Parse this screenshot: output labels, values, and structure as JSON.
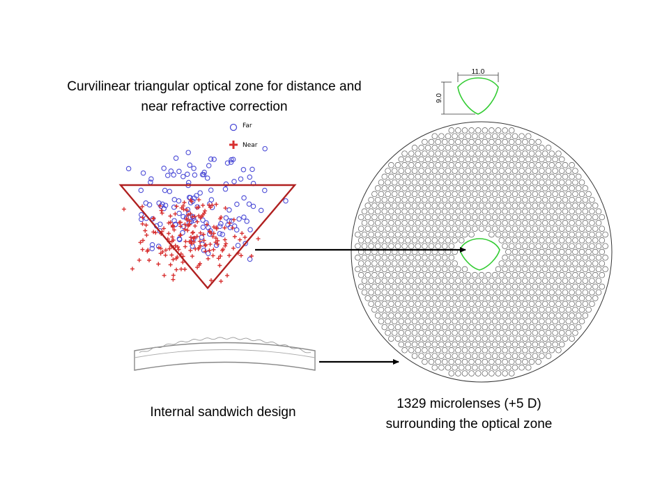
{
  "captions": {
    "top_line1": "Curvilinear triangular optical zone for distance and",
    "top_line2": "near refractive correction",
    "sandwich": "Internal sandwich design",
    "micro_line1": "1329 microlenses (+5 D)",
    "micro_line2": "surrounding the optical zone"
  },
  "legend": {
    "far": "Far",
    "near": "Near"
  },
  "dimensions": {
    "width": "11.0",
    "height": "9.0"
  },
  "colors": {
    "far_marker": "#4a4ad6",
    "near_marker": "#d83030",
    "triangle": "#b02020",
    "optical_zone": "#33cc33",
    "microlens": "#555555",
    "arrow": "#000000"
  }
}
